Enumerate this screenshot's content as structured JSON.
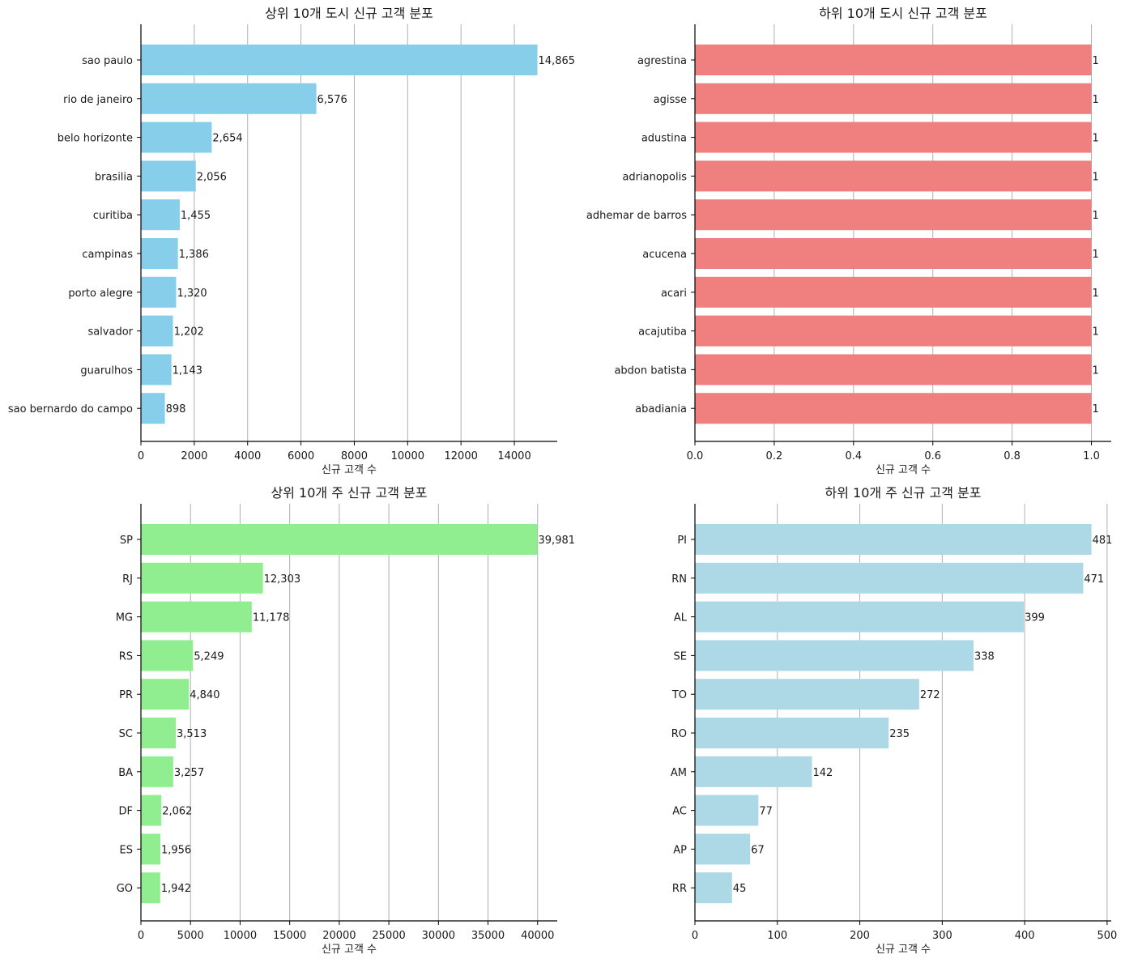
{
  "chart_data": [
    {
      "type": "bar",
      "orientation": "horizontal",
      "title": "상위 10개 도시 신규 고객 분포",
      "xlabel": "신규 고객 수",
      "ylabel": "",
      "color": "#87CEEB",
      "categories": [
        "sao paulo",
        "rio de janeiro",
        "belo horizonte",
        "brasilia",
        "curitiba",
        "campinas",
        "porto alegre",
        "salvador",
        "guarulhos",
        "sao bernardo do campo"
      ],
      "values": [
        14865,
        6576,
        2654,
        2056,
        1455,
        1386,
        1320,
        1202,
        1143,
        898
      ],
      "value_labels": [
        "14,865",
        "6,576",
        "2,654",
        "2,056",
        "1,455",
        "1,386",
        "1,320",
        "1,202",
        "1,143",
        "898"
      ],
      "xlim": [
        0,
        15608
      ],
      "xticks": [
        0,
        2000,
        4000,
        6000,
        8000,
        10000,
        12000,
        14000
      ],
      "xtick_labels": [
        "0",
        "2000",
        "4000",
        "6000",
        "8000",
        "10000",
        "12000",
        "14000"
      ],
      "grid": "x"
    },
    {
      "type": "bar",
      "orientation": "horizontal",
      "title": "하위 10개 도시 신규 고객 분포",
      "xlabel": "신규 고객 수",
      "ylabel": "",
      "color": "#F08080",
      "categories": [
        "agrestina",
        "agisse",
        "adustina",
        "adrianopolis",
        "adhemar de barros",
        "acucena",
        "acari",
        "acajutiba",
        "abdon batista",
        "abadiania"
      ],
      "values": [
        1,
        1,
        1,
        1,
        1,
        1,
        1,
        1,
        1,
        1
      ],
      "value_labels": [
        "1",
        "1",
        "1",
        "1",
        "1",
        "1",
        "1",
        "1",
        "1",
        "1"
      ],
      "xlim": [
        0,
        1.05
      ],
      "xticks": [
        0,
        0.2,
        0.4,
        0.6,
        0.8,
        1.0
      ],
      "xtick_labels": [
        "0.0",
        "0.2",
        "0.4",
        "0.6",
        "0.8",
        "1.0"
      ],
      "grid": "x"
    },
    {
      "type": "bar",
      "orientation": "horizontal",
      "title": "상위 10개 주 신규 고객 분포",
      "xlabel": "신규 고객 수",
      "ylabel": "",
      "color": "#90EE90",
      "categories": [
        "SP",
        "RJ",
        "MG",
        "RS",
        "PR",
        "SC",
        "BA",
        "DF",
        "ES",
        "GO"
      ],
      "values": [
        39981,
        12303,
        11178,
        5249,
        4840,
        3513,
        3257,
        2062,
        1956,
        1942
      ],
      "value_labels": [
        "39,981",
        "12,303",
        "11,178",
        "5,249",
        "4,840",
        "3,513",
        "3,257",
        "2,062",
        "1,956",
        "1,942"
      ],
      "xlim": [
        0,
        41980
      ],
      "xticks": [
        0,
        5000,
        10000,
        15000,
        20000,
        25000,
        30000,
        35000,
        40000
      ],
      "xtick_labels": [
        "0",
        "5000",
        "10000",
        "15000",
        "20000",
        "25000",
        "30000",
        "35000",
        "40000"
      ],
      "grid": "x"
    },
    {
      "type": "bar",
      "orientation": "horizontal",
      "title": "하위 10개 주 신규 고객 분포",
      "xlabel": "신규 고객 수",
      "ylabel": "",
      "color": "#ADD8E6",
      "categories": [
        "PI",
        "RN",
        "AL",
        "SE",
        "TO",
        "RO",
        "AM",
        "AC",
        "AP",
        "RR"
      ],
      "values": [
        481,
        471,
        399,
        338,
        272,
        235,
        142,
        77,
        67,
        45
      ],
      "value_labels": [
        "481",
        "471",
        "399",
        "338",
        "272",
        "235",
        "142",
        "77",
        "67",
        "45"
      ],
      "xlim": [
        0,
        505
      ],
      "xticks": [
        0,
        100,
        200,
        300,
        400,
        500
      ],
      "xtick_labels": [
        "0",
        "100",
        "200",
        "300",
        "400",
        "500"
      ],
      "grid": "x"
    }
  ]
}
